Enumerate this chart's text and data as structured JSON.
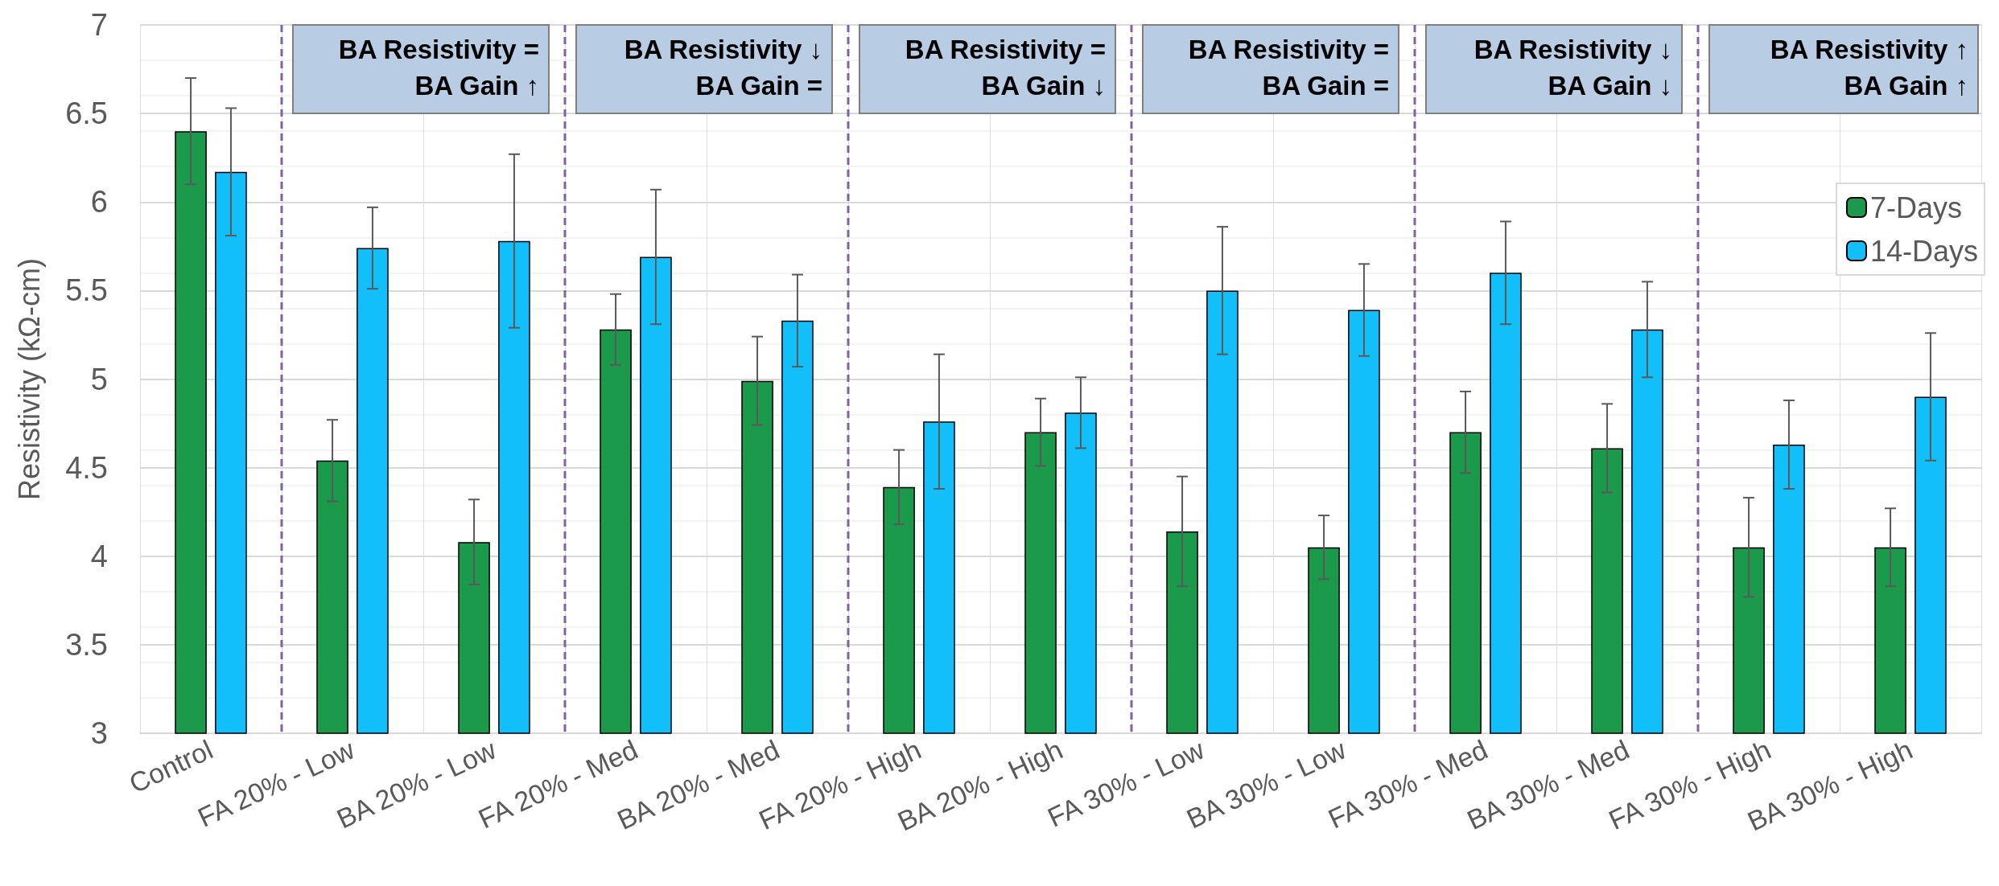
{
  "chart_data": {
    "type": "bar",
    "ylabel": "Resistivity (kΩ-cm)",
    "categories": [
      "Control",
      "FA 20% - Low",
      "BA 20% - Low",
      "FA 20% - Med",
      "BA 20% - Med",
      "FA 20% - High",
      "BA 20% - High",
      "FA 30% - Low",
      "BA 30% - Low",
      "FA 30% - Med",
      "BA 30% - Med",
      "FA 30% - High",
      "BA 30% - High"
    ],
    "series": [
      {
        "name": "7-Days",
        "color": "#1b9a4c",
        "values": [
          6.4,
          4.54,
          4.08,
          5.28,
          4.99,
          4.39,
          4.7,
          4.14,
          4.05,
          4.7,
          4.61,
          4.05,
          4.05
        ],
        "errors": [
          0.3,
          0.23,
          0.24,
          0.2,
          0.25,
          0.21,
          0.19,
          0.31,
          0.18,
          0.23,
          0.25,
          0.28,
          0.22
        ]
      },
      {
        "name": "14-Days",
        "color": "#13bffa",
        "values": [
          6.17,
          5.74,
          5.78,
          5.69,
          5.33,
          4.76,
          4.81,
          5.5,
          5.39,
          5.6,
          5.28,
          4.63,
          4.9
        ],
        "errors": [
          0.36,
          0.23,
          0.49,
          0.38,
          0.26,
          0.38,
          0.2,
          0.36,
          0.26,
          0.29,
          0.27,
          0.25,
          0.36
        ]
      }
    ],
    "ylim": [
      3,
      7
    ],
    "yticks": [
      3,
      3.5,
      4,
      4.5,
      5,
      5.5,
      6,
      6.5,
      7
    ],
    "grid": true,
    "legend": "right",
    "bands": [
      {
        "axis": "x",
        "from": "FA 20% - Low",
        "to": "BA 20% - Low",
        "label": "BA Resistivity =\nBA Gain ↑",
        "color": "#b8cce4"
      },
      {
        "axis": "x",
        "from": "FA 20% - Med",
        "to": "BA 20% - Med",
        "label": "BA Resistivity ↓\nBA Gain =",
        "color": "#b8cce4"
      },
      {
        "axis": "x",
        "from": "FA 20% - High",
        "to": "BA 20% - High",
        "label": "BA Resistivity =\nBA Gain ↓",
        "color": "#b8cce4"
      },
      {
        "axis": "x",
        "from": "FA 30% - Low",
        "to": "BA 30% - Low",
        "label": "BA Resistivity =\nBA Gain =",
        "color": "#b8cce4"
      },
      {
        "axis": "x",
        "from": "FA 30% - Med",
        "to": "BA 30% - Med",
        "label": "BA Resistivity ↓\nBA Gain ↓",
        "color": "#b8cce4"
      },
      {
        "axis": "x",
        "from": "FA 30% - High",
        "to": "BA 30% - High",
        "label": "BA Resistivity ↑\nBA Gain ↑",
        "color": "#b8cce4"
      }
    ]
  }
}
